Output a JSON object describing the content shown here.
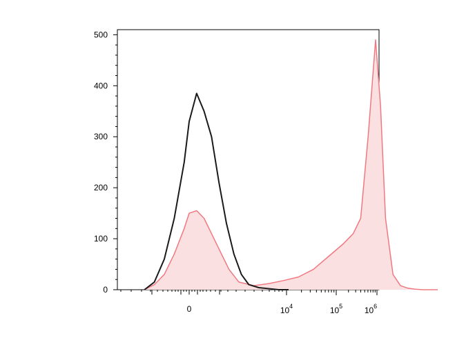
{
  "chart_data": {
    "type": "area",
    "title": "",
    "xlabel": "",
    "ylabel": "",
    "x_scale": "biexponential",
    "ylim": [
      0,
      510
    ],
    "y_ticks": [
      0,
      100,
      200,
      300,
      400,
      500
    ],
    "x_tick_labels": [
      {
        "base": "0",
        "exp": ""
      },
      {
        "base": "10",
        "exp": "4"
      },
      {
        "base": "10",
        "exp": "5"
      },
      {
        "base": "10",
        "exp": "6"
      }
    ],
    "series": [
      {
        "color": "#1a1a1a",
        "fill": "none",
        "x": [
          -0.9,
          -0.7,
          -0.5,
          -0.3,
          -0.1,
          0.0,
          0.15,
          0.3,
          0.45,
          0.6,
          0.75,
          0.9,
          1.05,
          1.2,
          1.4,
          1.6,
          1.8,
          2.0
        ],
        "values": [
          0,
          15,
          60,
          140,
          250,
          330,
          385,
          350,
          300,
          210,
          130,
          70,
          30,
          10,
          4,
          2,
          0,
          0
        ]
      },
      {
        "color": "#f07880",
        "fill": "#fbe0e2",
        "x": [
          -0.9,
          -0.7,
          -0.5,
          -0.3,
          -0.1,
          0.0,
          0.15,
          0.3,
          0.45,
          0.6,
          0.8,
          1.0,
          1.3,
          1.6,
          1.9,
          2.2,
          2.5,
          2.8,
          3.1,
          3.3,
          3.45,
          3.6,
          3.75,
          3.85,
          3.95,
          4.1,
          4.25,
          4.4,
          4.55,
          4.7,
          4.85,
          5.0
        ],
        "values": [
          0,
          10,
          30,
          70,
          120,
          150,
          155,
          140,
          110,
          80,
          40,
          15,
          8,
          12,
          18,
          25,
          40,
          65,
          90,
          110,
          140,
          300,
          490,
          360,
          140,
          30,
          8,
          3,
          1,
          0,
          0,
          0
        ]
      }
    ]
  }
}
